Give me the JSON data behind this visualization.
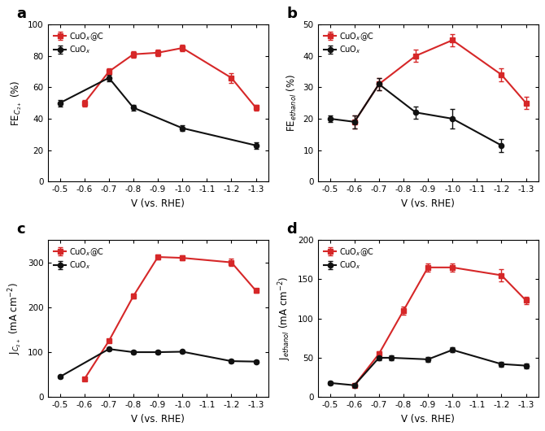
{
  "panel_a": {
    "red_x": [
      -0.6,
      -0.7,
      -0.8,
      -0.9,
      -1.0,
      -1.2,
      -1.3
    ],
    "red_y": [
      50,
      70,
      81,
      82,
      85,
      66,
      47
    ],
    "red_err": [
      2,
      2,
      2,
      2,
      2,
      3,
      2
    ],
    "black_x": [
      -0.5,
      -0.7,
      -0.8,
      -1.0,
      -1.3
    ],
    "black_y": [
      50,
      66,
      47,
      34,
      23
    ],
    "black_err": [
      2,
      2,
      2,
      2,
      2
    ],
    "ylabel": "FE$_{C_{2+}}$ (%)",
    "ylim": [
      0,
      100
    ],
    "yticks": [
      0,
      20,
      40,
      60,
      80,
      100
    ],
    "label": "a"
  },
  "panel_b": {
    "red_x": [
      -0.6,
      -0.7,
      -0.85,
      -1.0,
      -1.2,
      -1.3
    ],
    "red_y": [
      19,
      31,
      40,
      45,
      34,
      25
    ],
    "red_err": [
      2,
      2,
      2,
      2,
      2,
      2
    ],
    "black_x": [
      -0.5,
      -0.6,
      -0.7,
      -0.85,
      -1.0,
      -1.2
    ],
    "black_y": [
      20,
      19,
      31,
      22,
      20,
      11.5
    ],
    "black_err": [
      1,
      2,
      2,
      2,
      3,
      2
    ],
    "ylabel": "FE$_{ethanol}$ (%)",
    "ylim": [
      0,
      50
    ],
    "yticks": [
      0,
      10,
      20,
      30,
      40,
      50
    ],
    "label": "b"
  },
  "panel_c": {
    "red_x": [
      -0.6,
      -0.7,
      -0.8,
      -0.9,
      -1.0,
      -1.2,
      -1.3
    ],
    "red_y": [
      40,
      125,
      225,
      312,
      310,
      300,
      237
    ],
    "red_err": [
      2,
      3,
      5,
      5,
      5,
      8,
      5
    ],
    "black_x": [
      -0.5,
      -0.7,
      -0.8,
      -0.9,
      -1.0,
      -1.2,
      -1.3
    ],
    "black_y": [
      45,
      107,
      100,
      100,
      101,
      80,
      79
    ],
    "black_err": [
      2,
      3,
      3,
      3,
      3,
      3,
      3
    ],
    "ylabel": "J$_{C_{2+}}$ (mA cm$^{-2}$)",
    "ylim": [
      0,
      350
    ],
    "yticks": [
      0,
      100,
      200,
      300
    ],
    "label": "c"
  },
  "panel_d": {
    "red_x": [
      -0.6,
      -0.7,
      -0.8,
      -0.9,
      -1.0,
      -1.2,
      -1.3
    ],
    "red_y": [
      15,
      55,
      110,
      165,
      165,
      155,
      123
    ],
    "red_err": [
      2,
      3,
      5,
      5,
      5,
      8,
      5
    ],
    "black_x": [
      -0.5,
      -0.6,
      -0.7,
      -0.75,
      -0.9,
      -1.0,
      -1.2,
      -1.3
    ],
    "black_y": [
      18,
      15,
      50,
      50,
      48,
      60,
      42,
      40
    ],
    "black_err": [
      2,
      2,
      3,
      3,
      3,
      3,
      3,
      3
    ],
    "ylabel": "J$_{ethanol}$ (mA cm$^{-2}$)",
    "ylim": [
      0,
      200
    ],
    "yticks": [
      0,
      50,
      100,
      150,
      200
    ],
    "label": "d"
  },
  "red_color": "#d62728",
  "black_color": "#111111",
  "red_label": "CuO$_x$@C",
  "black_label": "CuO$_x$",
  "xlabel": "V (vs. RHE)",
  "xlim": [
    -0.45,
    -1.35
  ],
  "xticks": [
    -0.5,
    -0.6,
    -0.7,
    -0.8,
    -0.9,
    -1.0,
    -1.1,
    -1.2,
    -1.3
  ]
}
